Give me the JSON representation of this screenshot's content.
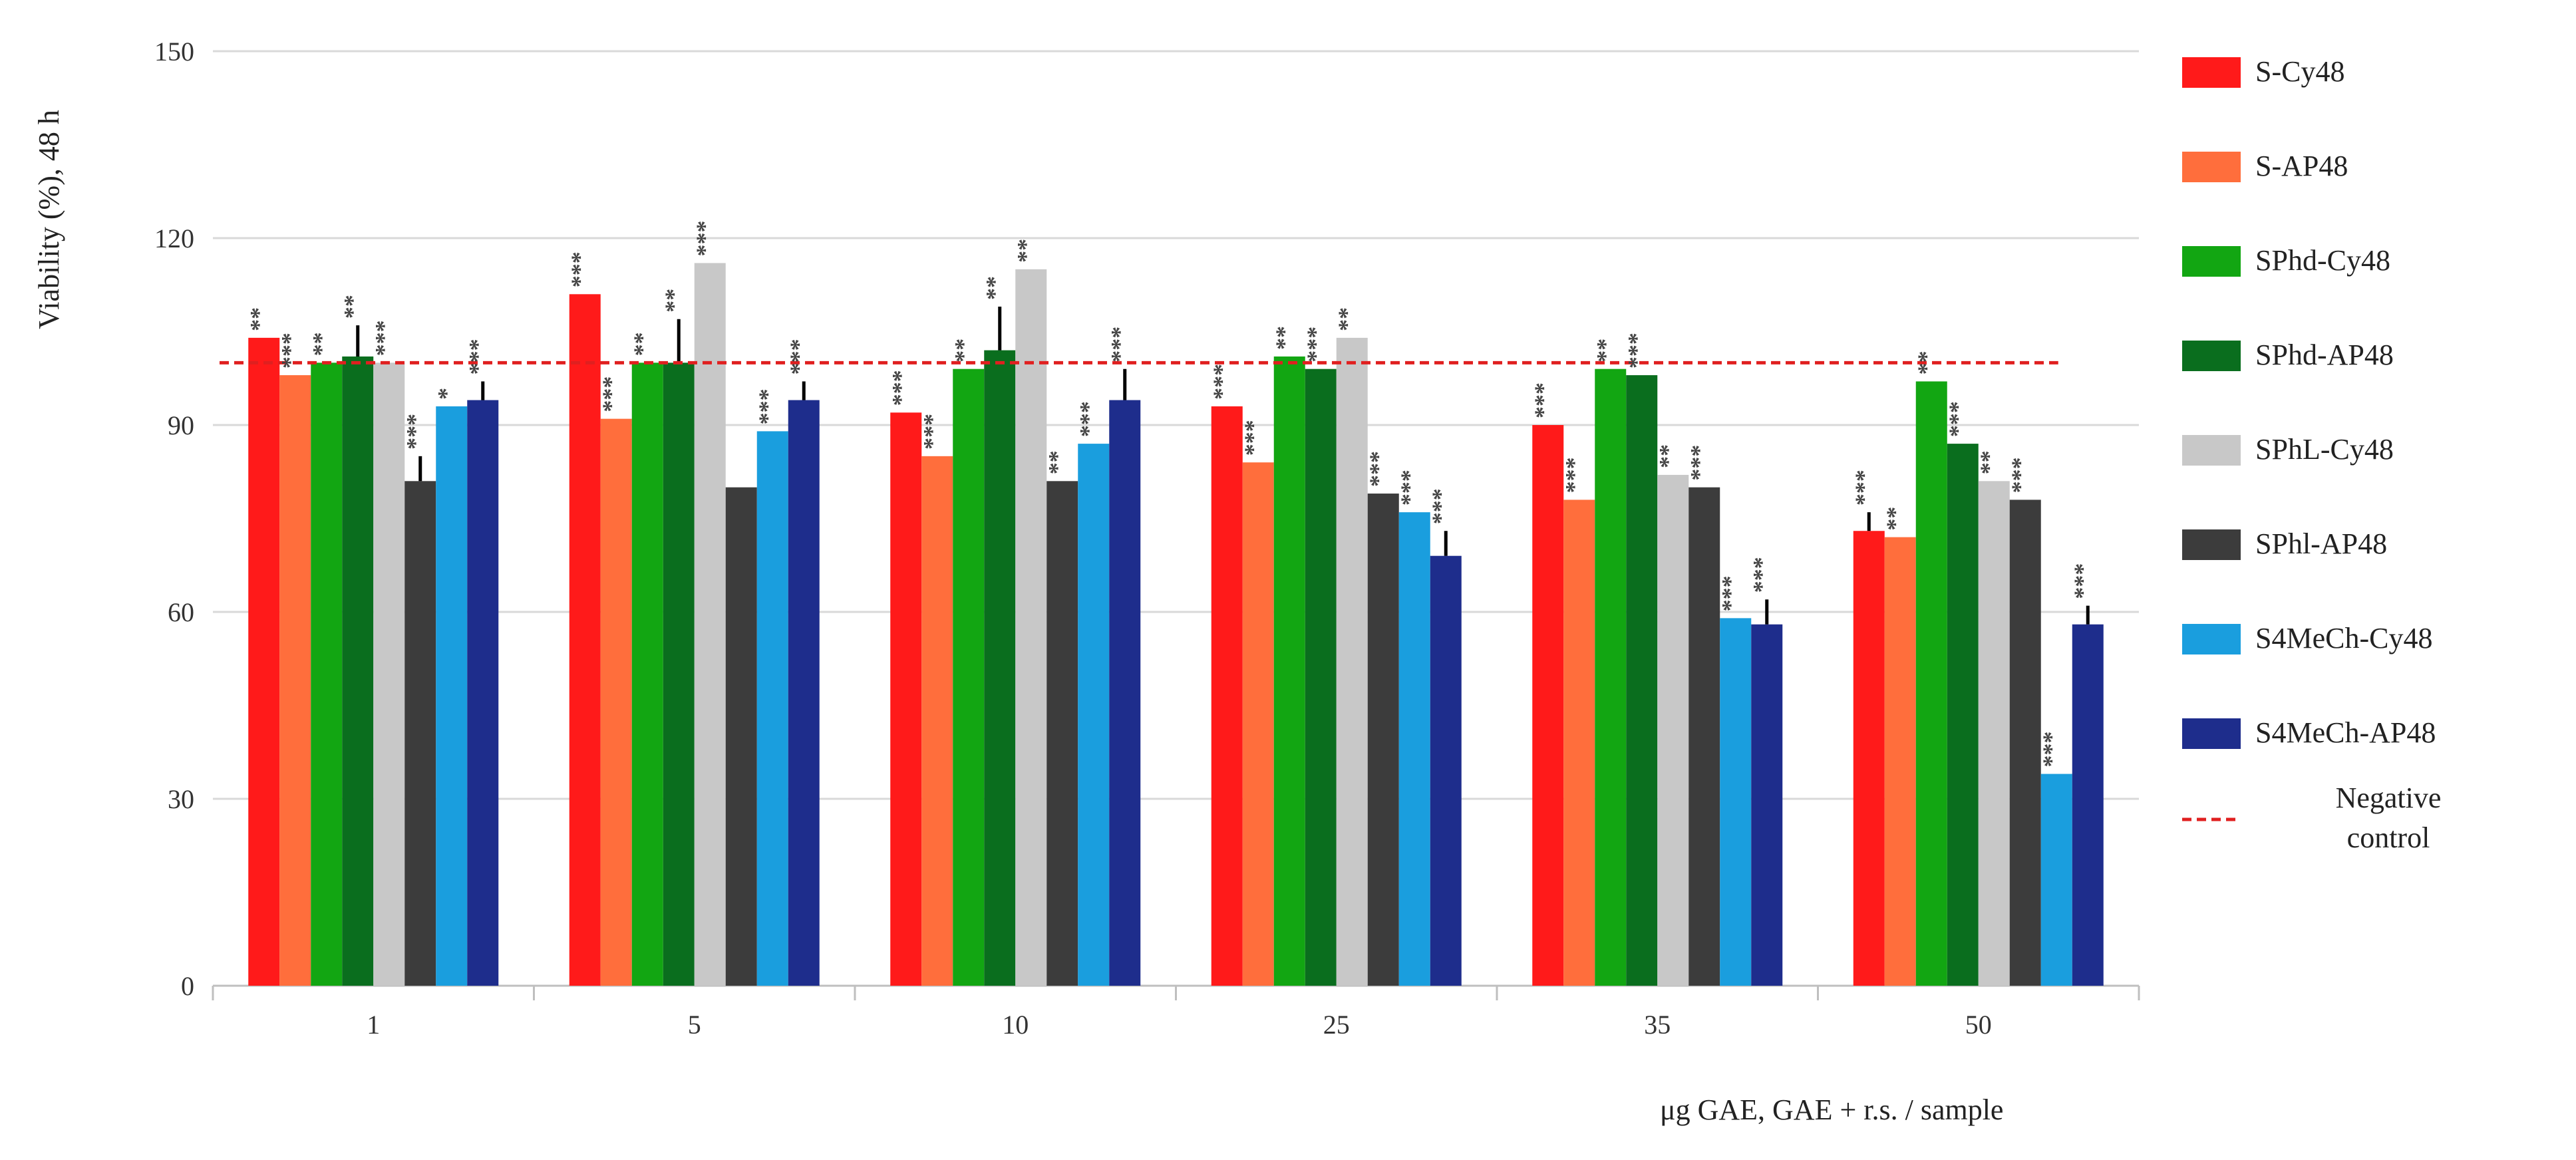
{
  "chart_data": {
    "type": "bar",
    "ylabel": "Viability (%), 48 h",
    "xlabel": "μg GAE, GAE + r.s. / sample",
    "ylim": [
      0,
      150
    ],
    "yticks": [
      0,
      30,
      60,
      90,
      120,
      150
    ],
    "grid": true,
    "legend_position": "right",
    "categories": [
      "1",
      "5",
      "10",
      "25",
      "35",
      "50"
    ],
    "series": [
      {
        "name": "S-Cy48",
        "color": "#ff1a1a",
        "values": [
          104,
          111,
          92,
          93,
          90,
          73
        ],
        "error": [
          0,
          0,
          0,
          0,
          0,
          3
        ],
        "significance": [
          "**",
          "***",
          "***",
          "***",
          "***",
          "***"
        ]
      },
      {
        "name": "S-AP48",
        "color": "#ff6e3c",
        "values": [
          98,
          91,
          85,
          84,
          78,
          72
        ],
        "error": [
          0,
          0,
          0,
          0,
          0,
          0
        ],
        "significance": [
          "***",
          "***",
          "***",
          "***",
          "***",
          "**"
        ]
      },
      {
        "name": "SPhd-Cy48",
        "color": "#12a612",
        "values": [
          100,
          100,
          99,
          101,
          99,
          97
        ],
        "error": [
          0,
          0,
          0,
          0,
          0,
          0
        ],
        "significance": [
          "**",
          "**",
          "**",
          "**",
          "**",
          "**"
        ]
      },
      {
        "name": "SPhd-AP48",
        "color": "#0a6e1e",
        "values": [
          101,
          100,
          102,
          99,
          98,
          87
        ],
        "error": [
          5,
          7,
          7,
          0,
          0,
          0
        ],
        "significance": [
          "**",
          "**",
          "**",
          "***",
          "***",
          "***"
        ]
      },
      {
        "name": "SPhL-Cy48",
        "color": "#c8c8c8",
        "values": [
          100,
          116,
          115,
          104,
          82,
          81
        ],
        "error": [
          0,
          0,
          0,
          0,
          0,
          0
        ],
        "significance": [
          "***",
          "***",
          "**",
          "**",
          "**",
          "**"
        ]
      },
      {
        "name": "SPhl-AP48",
        "color": "#3c3c3c",
        "values": [
          81,
          80,
          81,
          79,
          80,
          78
        ],
        "error": [
          4,
          0,
          0,
          0,
          0,
          0
        ],
        "significance": [
          "***",
          "",
          "**",
          "***",
          "***",
          "***"
        ]
      },
      {
        "name": "S4MeCh-Cy48",
        "color": "#1a9ede",
        "values": [
          93,
          89,
          87,
          76,
          59,
          34
        ],
        "error": [
          0,
          0,
          0,
          0,
          0,
          0
        ],
        "significance": [
          "*",
          "***",
          "***",
          "***",
          "***",
          "***"
        ]
      },
      {
        "name": "S4MeCh-AP48",
        "color": "#1e2d8c",
        "values": [
          94,
          94,
          94,
          69,
          58,
          58
        ],
        "error": [
          3,
          3,
          5,
          4,
          4,
          3
        ],
        "significance": [
          "***",
          "***",
          "***",
          "***",
          "***",
          "***"
        ]
      }
    ],
    "reference_line": {
      "name": "Negative\ncontrol",
      "value": 100,
      "color": "#e02020"
    }
  }
}
